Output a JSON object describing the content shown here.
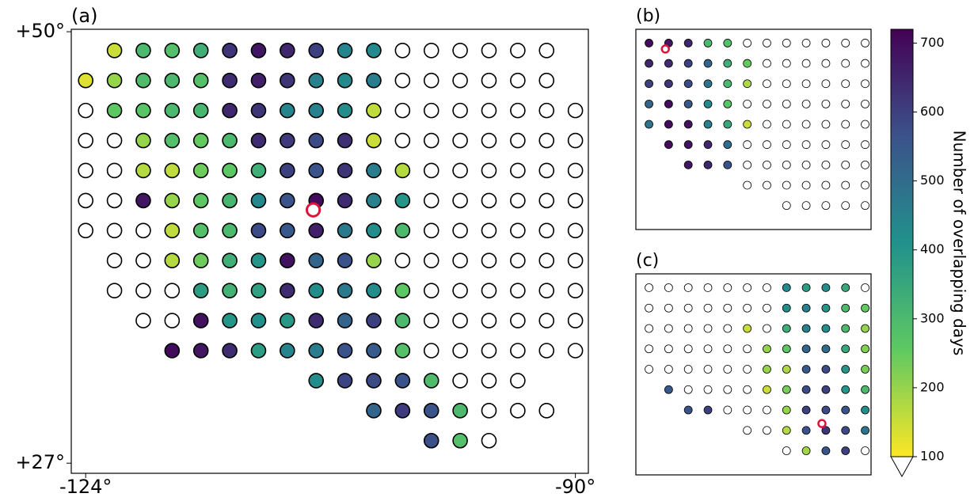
{
  "chart_data": [
    {
      "type": "map",
      "label": "(a)",
      "xlim": [
        -125,
        -89.1
      ],
      "ylim": [
        26.46,
        50.13
      ],
      "xticks": [
        {
          "value": -124,
          "label": "-124°"
        },
        {
          "value": -90,
          "label": "-90°"
        }
      ],
      "yticks": [
        {
          "value": 50,
          "label": "+50°"
        },
        {
          "value": 27,
          "label": "+27°"
        }
      ],
      "lon_step": 2,
      "highlight": [
        -108.2,
        40.5
      ],
      "rows": [
        {
          "lat": 49,
          "lon_start": -122,
          "values": [
            150,
            300,
            280,
            330,
            620,
            680,
            650,
            600,
            440,
            430,
            null,
            null,
            null,
            null,
            null,
            null
          ]
        },
        {
          "lat": 47.4,
          "lon_start": -124,
          "values": [
            130,
            200,
            290,
            300,
            280,
            640,
            660,
            620,
            450,
            430,
            460,
            null,
            null,
            null,
            null,
            null,
            null
          ]
        },
        {
          "lat": 45.8,
          "lon_start": -124,
          "values": [
            null,
            260,
            270,
            300,
            310,
            650,
            620,
            440,
            450,
            420,
            160,
            null,
            null,
            null,
            null,
            null,
            null,
            null
          ]
        },
        {
          "lat": 44.2,
          "lon_start": -124,
          "values": [
            null,
            null,
            200,
            280,
            250,
            300,
            640,
            610,
            580,
            630,
            150,
            null,
            null,
            null,
            null,
            null,
            null,
            null
          ]
        },
        {
          "lat": 42.6,
          "lon_start": -124,
          "values": [
            null,
            null,
            170,
            160,
            240,
            260,
            330,
            600,
            560,
            620,
            460,
            170,
            null,
            null,
            null,
            null,
            null,
            null
          ]
        },
        {
          "lat": 41,
          "lon_start": -124,
          "values": [
            null,
            null,
            680,
            200,
            260,
            310,
            430,
            560,
            700,
            640,
            450,
            400,
            null,
            null,
            null,
            null,
            null,
            null
          ]
        },
        {
          "lat": 39.4,
          "lon_start": -124,
          "values": [
            null,
            null,
            null,
            160,
            280,
            300,
            580,
            550,
            660,
            470,
            420,
            300,
            null,
            null,
            null,
            null,
            null,
            null
          ]
        },
        {
          "lat": 37.8,
          "lon_start": -122,
          "values": [
            null,
            null,
            170,
            240,
            330,
            400,
            690,
            520,
            560,
            200,
            null,
            null,
            null,
            null,
            null,
            null,
            null
          ]
        },
        {
          "lat": 36.2,
          "lon_start": -122,
          "values": [
            null,
            null,
            null,
            380,
            320,
            370,
            640,
            420,
            470,
            420,
            260,
            null,
            null,
            null,
            null,
            null,
            null
          ]
        },
        {
          "lat": 34.6,
          "lon_start": -120,
          "values": [
            null,
            null,
            690,
            400,
            410,
            390,
            640,
            520,
            600,
            300,
            null,
            null,
            null,
            null,
            null,
            null
          ]
        },
        {
          "lat": 33,
          "lon_start": -118,
          "values": [
            700,
            680,
            640,
            380,
            440,
            460,
            560,
            540,
            280,
            null,
            null,
            null,
            null,
            null,
            null
          ]
        },
        {
          "lat": 31.4,
          "lon_start": -108,
          "values": [
            420,
            590,
            580,
            560,
            290,
            null,
            null,
            null
          ]
        },
        {
          "lat": 29.8,
          "lon_start": -104,
          "values": [
            520,
            610,
            560,
            300,
            null,
            null,
            null
          ]
        },
        {
          "lat": 28.2,
          "lon_start": -100,
          "values": [
            570,
            280,
            null
          ]
        }
      ]
    },
    {
      "type": "map",
      "label": "(b)",
      "xlim": [
        -125,
        -89.1
      ],
      "ylim": [
        26.46,
        50.13
      ],
      "lon_step": 3,
      "highlight": [
        -120.5,
        47.8
      ],
      "rows": [
        {
          "lat": 48.5,
          "lon_start": -123,
          "values": [
            700,
            680,
            650,
            300,
            280,
            null,
            null,
            null,
            null,
            null,
            null,
            null
          ]
        },
        {
          "lat": 46.1,
          "lon_start": -123,
          "values": [
            650,
            640,
            600,
            520,
            330,
            250,
            null,
            null,
            null,
            null,
            null,
            null
          ]
        },
        {
          "lat": 43.7,
          "lon_start": -123,
          "values": [
            600,
            620,
            580,
            480,
            300,
            180,
            null,
            null,
            null,
            null,
            null,
            null
          ]
        },
        {
          "lat": 41.3,
          "lon_start": -123,
          "values": [
            520,
            700,
            550,
            430,
            270,
            null,
            null,
            null,
            null,
            null,
            null,
            null
          ]
        },
        {
          "lat": 38.9,
          "lon_start": -123,
          "values": [
            480,
            700,
            690,
            450,
            350,
            150,
            null,
            null,
            null,
            null,
            null,
            null
          ]
        },
        {
          "lat": 36.5,
          "lon_start": -120,
          "values": [
            700,
            690,
            650,
            500,
            null,
            null,
            null,
            null,
            null,
            null,
            null
          ]
        },
        {
          "lat": 34.1,
          "lon_start": -117,
          "values": [
            680,
            650,
            560,
            null,
            null,
            null,
            null,
            null,
            null,
            null
          ]
        },
        {
          "lat": 31.7,
          "lon_start": -108,
          "values": [
            null,
            null,
            null,
            null,
            null,
            null,
            null
          ]
        },
        {
          "lat": 29.3,
          "lon_start": -102,
          "values": [
            null,
            null,
            null,
            null,
            null
          ]
        }
      ]
    },
    {
      "type": "map",
      "label": "(c)",
      "xlim": [
        -125,
        -89.1
      ],
      "ylim": [
        26.46,
        50.13
      ],
      "lon_step": 3,
      "highlight": [
        -96.6,
        32.5
      ],
      "rows": [
        {
          "lat": 48.5,
          "lon_start": -123,
          "values": [
            null,
            null,
            null,
            null,
            null,
            null,
            null,
            430,
            380,
            420,
            350,
            null
          ]
        },
        {
          "lat": 46.1,
          "lon_start": -123,
          "values": [
            null,
            null,
            null,
            null,
            null,
            null,
            null,
            420,
            450,
            400,
            300,
            250
          ]
        },
        {
          "lat": 43.7,
          "lon_start": -123,
          "values": [
            null,
            null,
            null,
            null,
            null,
            150,
            null,
            330,
            450,
            420,
            300,
            200
          ]
        },
        {
          "lat": 41.3,
          "lon_start": -123,
          "values": [
            null,
            null,
            null,
            null,
            null,
            null,
            200,
            260,
            520,
            500,
            350,
            220
          ]
        },
        {
          "lat": 38.9,
          "lon_start": -123,
          "values": [
            null,
            null,
            null,
            null,
            null,
            null,
            200,
            180,
            550,
            580,
            400,
            230
          ]
        },
        {
          "lat": 36.5,
          "lon_start": -120,
          "values": [
            550,
            null,
            null,
            null,
            null,
            150,
            230,
            580,
            600,
            400,
            300
          ]
        },
        {
          "lat": 34.1,
          "lon_start": -117,
          "values": [
            560,
            600,
            null,
            null,
            null,
            200,
            600,
            580,
            560,
            420
          ]
        },
        {
          "lat": 31.7,
          "lon_start": -108,
          "values": [
            null,
            null,
            170,
            560,
            620,
            580,
            480
          ]
        },
        {
          "lat": 29.3,
          "lon_start": -102,
          "values": [
            null,
            190,
            560,
            600,
            null
          ]
        }
      ]
    }
  ],
  "colorbar": {
    "label": "Number of overlapping days",
    "cmap": "viridis_r",
    "lim": [
      100,
      720
    ],
    "ticks": [
      100,
      200,
      300,
      400,
      500,
      600,
      700
    ],
    "extend": "min"
  }
}
